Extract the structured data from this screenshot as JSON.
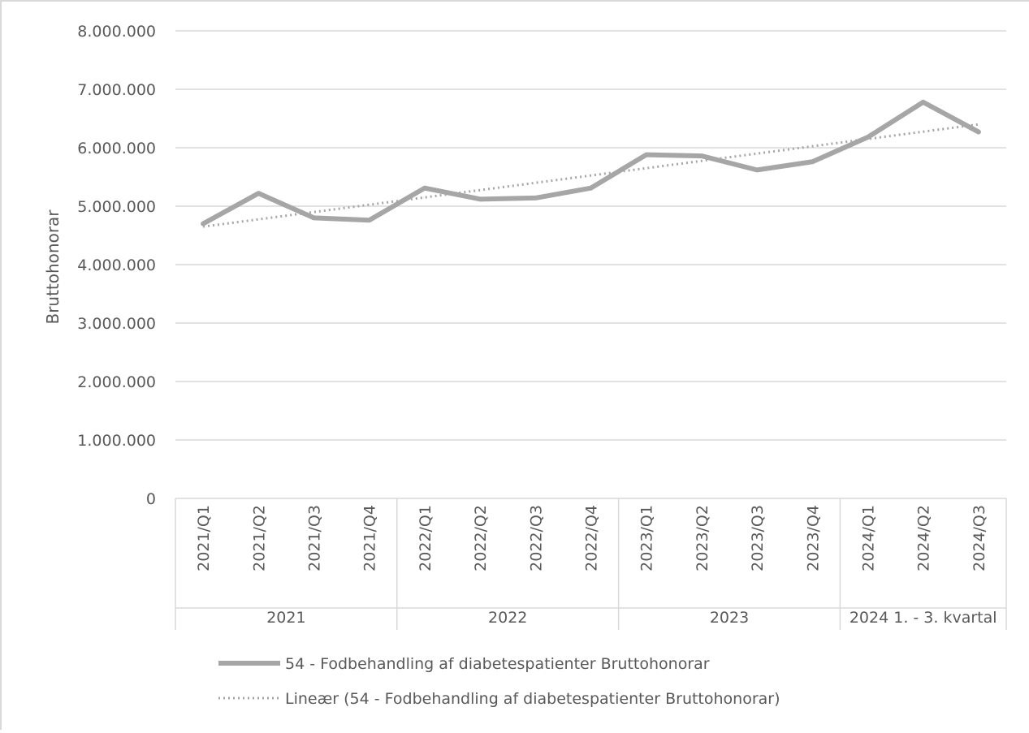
{
  "chart_data": {
    "type": "line",
    "title": "",
    "xlabel": "",
    "ylabel": "Bruttohonorar",
    "ylim": [
      0,
      8000000
    ],
    "yticks": [
      "0",
      "1.000.000",
      "2.000.000",
      "3.000.000",
      "4.000.000",
      "5.000.000",
      "6.000.000",
      "7.000.000",
      "8.000.000"
    ],
    "ytick_values": [
      0,
      1000000,
      2000000,
      3000000,
      4000000,
      5000000,
      6000000,
      7000000,
      8000000
    ],
    "categories": [
      "2021/Q1",
      "2021/Q2",
      "2021/Q3",
      "2021/Q4",
      "2022/Q1",
      "2022/Q2",
      "2022/Q3",
      "2022/Q4",
      "2023/Q1",
      "2023/Q2",
      "2023/Q3",
      "2023/Q4",
      "2024/Q1",
      "2024/Q2",
      "2024/Q3"
    ],
    "groups": [
      {
        "label": "2021",
        "count": 4
      },
      {
        "label": "2022",
        "count": 4
      },
      {
        "label": "2023",
        "count": 4
      },
      {
        "label": "2024 1. - 3. kvartal",
        "count": 3
      }
    ],
    "series": [
      {
        "name": "54 - Fodbehandling af diabetespatienter Bruttohonorar",
        "values": [
          4700000,
          5220000,
          4800000,
          4760000,
          5310000,
          5120000,
          5140000,
          5310000,
          5880000,
          5860000,
          5620000,
          5760000,
          6180000,
          6780000,
          6270000
        ],
        "color": "#a6a6a6",
        "style": "solid"
      }
    ],
    "trendline": {
      "name": "Lineær (54 - Fodbehandling af diabetespatienter Bruttohonorar)",
      "start": 4650000,
      "end": 6400000,
      "color": "#a6a6a6",
      "style": "dotted"
    },
    "grid": true,
    "legend_position": "bottom",
    "colors": {
      "grid": "#d9d9d9",
      "axis_text": "#595959"
    }
  }
}
